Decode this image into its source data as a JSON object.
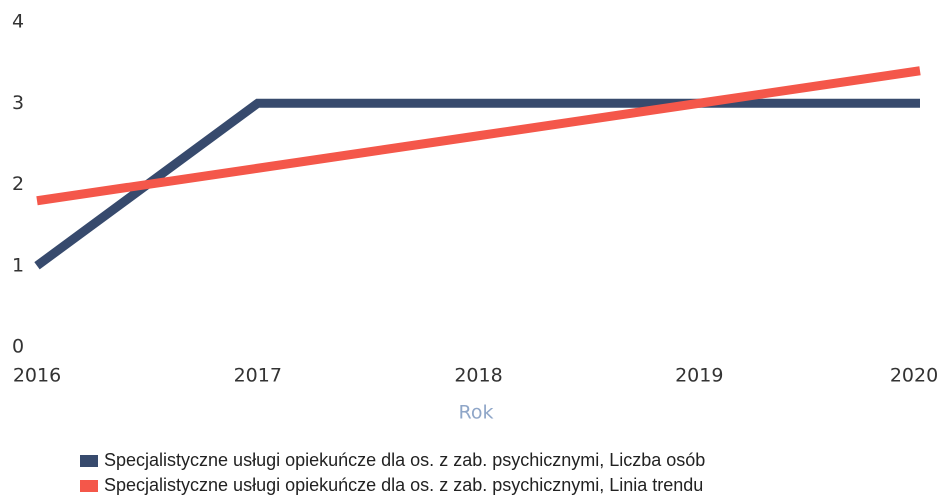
{
  "chart_data": {
    "type": "line",
    "x": [
      2016,
      2017,
      2018,
      2019,
      2020
    ],
    "xlim": [
      2016,
      2020
    ],
    "xticks": [
      2016,
      2017,
      2018,
      2019,
      2020
    ],
    "ylim": [
      0,
      4
    ],
    "yticks": [
      0,
      1,
      2,
      3,
      4
    ],
    "x_label": "Rok",
    "series": [
      {
        "name": "Specjalistyczne usługi opiekuńcze dla os. z zab. psychicznymi, Liczba osób",
        "color": "#374a6d",
        "values": [
          1,
          3,
          3,
          3,
          3
        ]
      },
      {
        "name": "Specjalistyczne usługi opiekuńcze dla os. z zab. psychicznymi, Linia trendu",
        "color": "#f4574a",
        "values": [
          1.8,
          2.2,
          2.6,
          3.0,
          3.4
        ]
      }
    ],
    "legend": "bottom",
    "grid": false
  }
}
